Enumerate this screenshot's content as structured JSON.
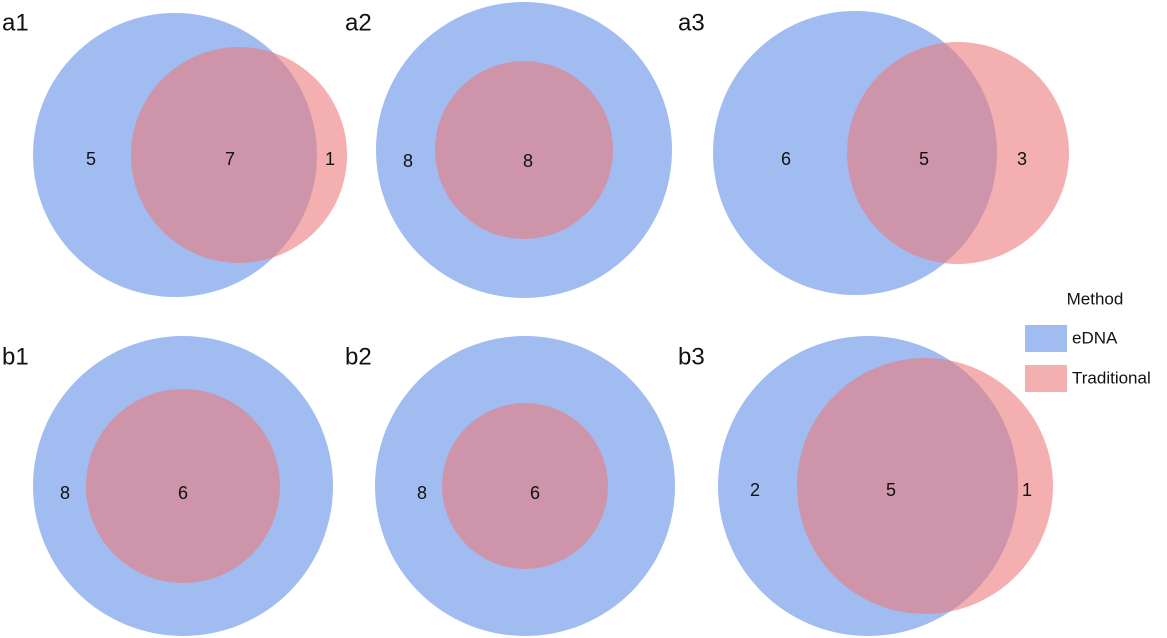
{
  "chart_data": [
    {
      "type": "venn",
      "label": "a1",
      "only_edna": 5,
      "both": 7,
      "only_traditional": 1
    },
    {
      "type": "venn",
      "label": "a2",
      "only_edna": 8,
      "both": 8
    },
    {
      "type": "venn",
      "label": "a3",
      "only_edna": 6,
      "both": 5,
      "only_traditional": 3
    },
    {
      "type": "venn",
      "label": "b1",
      "only_edna": 8,
      "both": 6
    },
    {
      "type": "venn",
      "label": "b2",
      "only_edna": 8,
      "both": 6
    },
    {
      "type": "venn",
      "label": "b3",
      "only_edna": 2,
      "both": 5,
      "only_traditional": 1
    }
  ],
  "legend": {
    "title": "Method",
    "items": [
      {
        "name": "eDNA",
        "color": "#a0bcf1"
      },
      {
        "name": "Traditional",
        "color": "#ec7b7b"
      }
    ]
  }
}
